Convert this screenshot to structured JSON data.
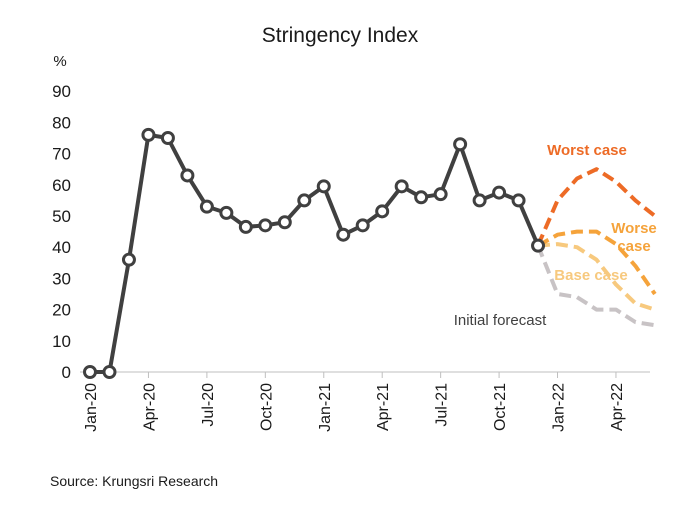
{
  "chart_data": {
    "type": "line",
    "title": "Stringency Index",
    "ylabel": "%",
    "ylim": [
      0,
      90
    ],
    "yticks": [
      0,
      10,
      20,
      30,
      40,
      50,
      60,
      70,
      80,
      90
    ],
    "x_tick_labels": [
      "Jan-20",
      "Apr-20",
      "Jul-20",
      "Oct-20",
      "Jan-21",
      "Apr-21",
      "Jul-21",
      "Oct-21",
      "Jan-22",
      "Apr-22"
    ],
    "grid": false,
    "source": "Source: Krungsri Research",
    "series": [
      {
        "name": "",
        "color": "#404040",
        "style": "solid-markers",
        "x": [
          "Jan-20",
          "Feb-20",
          "Mar-20",
          "Apr-20",
          "May-20",
          "Jun-20",
          "Jul-20",
          "Aug-20",
          "Sep-20",
          "Oct-20",
          "Nov-20",
          "Dec-20",
          "Jan-21",
          "Feb-21",
          "Mar-21",
          "Apr-21",
          "May-21",
          "Jun-21",
          "Jul-21",
          "Aug-21",
          "Sep-21",
          "Oct-21",
          "Nov-21",
          "Dec-21"
        ],
        "values": [
          0,
          0,
          36,
          76,
          75,
          63,
          53,
          51,
          46.5,
          47,
          48,
          55,
          59.5,
          44,
          47,
          51.5,
          59.5,
          56,
          57,
          73,
          55,
          57.5,
          55,
          40.5
        ]
      },
      {
        "name": "Worst case",
        "color": "#ED6B26",
        "style": "dashed",
        "label_color": "#ED6B26",
        "x": [
          "Dec-21",
          "Jan-22",
          "Feb-22",
          "Mar-22",
          "Apr-22",
          "May-22",
          "Jun-22"
        ],
        "values": [
          40.5,
          55,
          62,
          65,
          61,
          55,
          50
        ]
      },
      {
        "name": "Worse case",
        "color": "#F5A33B",
        "style": "dashed",
        "label_color": "#F5A33B",
        "x": [
          "Dec-21",
          "Jan-22",
          "Feb-22",
          "Mar-22",
          "Apr-22",
          "May-22",
          "Jun-22"
        ],
        "values": [
          40.5,
          44,
          45,
          45,
          41,
          34,
          25
        ]
      },
      {
        "name": "Base case",
        "color": "#F7C97E",
        "style": "dashed",
        "label_color": "#F7C97E",
        "x": [
          "Dec-21",
          "Jan-22",
          "Feb-22",
          "Mar-22",
          "Apr-22",
          "May-22",
          "Jun-22"
        ],
        "values": [
          40.5,
          41,
          40,
          36,
          28,
          22,
          20
        ]
      },
      {
        "name": "Initial forecast",
        "color": "#C8C3C5",
        "style": "dashed",
        "label_color": "#404040",
        "x": [
          "Dec-21",
          "Jan-22",
          "Feb-22",
          "Mar-22",
          "Apr-22",
          "May-22",
          "Jun-22"
        ],
        "values": [
          40.5,
          25,
          24,
          20,
          20,
          16,
          15
        ]
      }
    ]
  }
}
